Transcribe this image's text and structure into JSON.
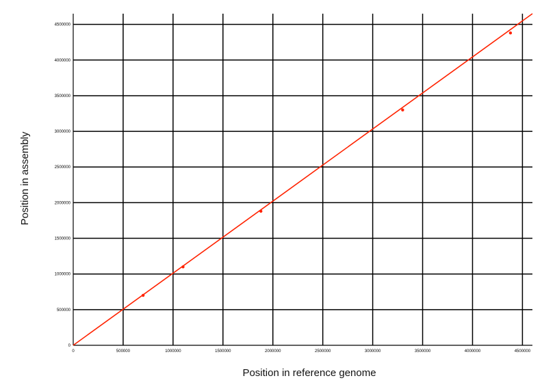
{
  "chart_data": {
    "type": "line",
    "xlabel": "Position in reference genome",
    "ylabel": "Position in assembly",
    "xlim": [
      0,
      4600000
    ],
    "ylim": [
      0,
      4650000
    ],
    "x_ticks": [
      "0",
      "500000",
      "1000000",
      "1500000",
      "2000000",
      "2500000",
      "3000000",
      "3500000",
      "4000000",
      "4500000"
    ],
    "y_ticks": [
      "0",
      "500000",
      "1000000",
      "1500000",
      "2000000",
      "2500000",
      "3000000",
      "3500000",
      "4000000",
      "4500000"
    ],
    "grid": true,
    "line_color": "#ff2200",
    "series": [
      {
        "x": [
          0,
          4600000
        ],
        "y": [
          0,
          4650000
        ],
        "markers": [
          [
            700000,
            700000
          ],
          [
            1100000,
            1100000
          ],
          [
            1880000,
            1880000
          ],
          [
            3300000,
            3300000
          ],
          [
            4380000,
            4380000
          ]
        ]
      }
    ]
  }
}
